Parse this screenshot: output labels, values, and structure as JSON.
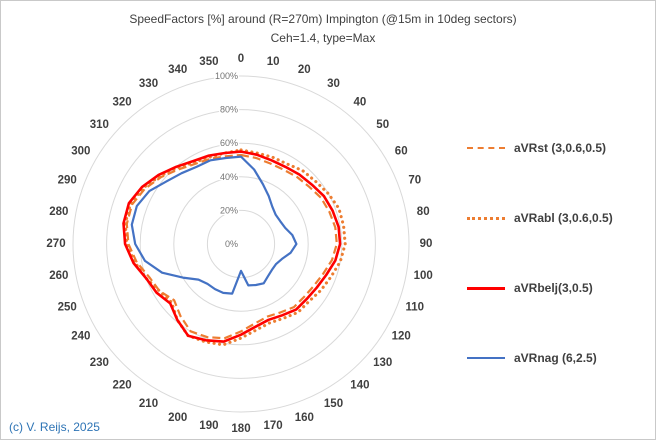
{
  "footer": {
    "copyright": "(c) V. Reijs, 2025"
  },
  "chart_data": {
    "type": "radar",
    "title": "SpeedFactors [%] around (R=270m) Impington (@15m in 10deg sectors)",
    "subtitle": "Ceh=1.4, type=Max",
    "angle_unit": "degrees",
    "direction": "clockwise-from-top",
    "categories": [
      "0",
      "10",
      "20",
      "30",
      "40",
      "50",
      "60",
      "70",
      "80",
      "90",
      "100",
      "110",
      "120",
      "130",
      "140",
      "150",
      "160",
      "170",
      "180",
      "190",
      "200",
      "210",
      "220",
      "230",
      "240",
      "250",
      "260",
      "270",
      "280",
      "290",
      "300",
      "310",
      "320",
      "330",
      "340",
      "350"
    ],
    "radial_ticks": [
      "0%",
      "20%",
      "40%",
      "60%",
      "80%",
      "100%"
    ],
    "rlim": [
      0,
      100
    ],
    "grid": "concentric-circles",
    "legend_position": "right",
    "colors": {
      "orange": "#ED7D31",
      "red": "#FF0000",
      "blue": "#4472C4",
      "grid": "#D9D9D9"
    },
    "series": [
      {
        "id": "aVRst",
        "name": "aVRst (3,0.6,0.5)",
        "color": "#ED7D31",
        "style": "dashed",
        "width": 2.2,
        "values": [
          53,
          52,
          51,
          51,
          52,
          53,
          55,
          56,
          57,
          57,
          55,
          52,
          50,
          49,
          49,
          47,
          46,
          48,
          52,
          57,
          59,
          60,
          56,
          52,
          56,
          58,
          63,
          67,
          69,
          69,
          66,
          62,
          58,
          55,
          54,
          53
        ]
      },
      {
        "id": "aVRabl",
        "name": "aVRabl (3,0.6,0.5)",
        "color": "#ED7D31",
        "style": "dotted",
        "width": 3.1,
        "values": [
          56,
          55,
          55,
          55,
          57,
          58,
          60,
          62,
          62,
          62,
          60,
          57,
          55,
          53,
          53,
          51,
          50,
          52,
          56,
          61,
          62,
          63,
          59,
          54,
          56,
          60,
          64,
          68,
          70,
          70,
          67,
          63,
          59,
          56,
          55,
          55
        ]
      },
      {
        "id": "aVRbelj",
        "name": "aVRbelj(3,0.5)",
        "color": "#FF0000",
        "style": "solid",
        "width": 2.6,
        "values": [
          55,
          54,
          53,
          53,
          54,
          55,
          57,
          58,
          59,
          59,
          57,
          54,
          52,
          51,
          51,
          49,
          48,
          50,
          54,
          59,
          61,
          63,
          59,
          55,
          58,
          60,
          65,
          69,
          71,
          71,
          68,
          64,
          60,
          57,
          56,
          55
        ]
      },
      {
        "id": "aVRnag",
        "name": "aVRnag (6,2.5)",
        "color": "#4472C4",
        "style": "solid",
        "width": 2.2,
        "values": [
          52,
          45,
          38,
          33,
          29,
          27,
          27,
          28,
          31,
          33,
          30,
          26,
          24,
          24,
          25,
          27,
          26,
          25,
          16,
          30,
          31,
          31,
          31,
          33,
          40,
          50,
          58,
          63,
          66,
          66,
          63,
          58,
          55,
          53,
          53,
          52
        ]
      }
    ]
  }
}
